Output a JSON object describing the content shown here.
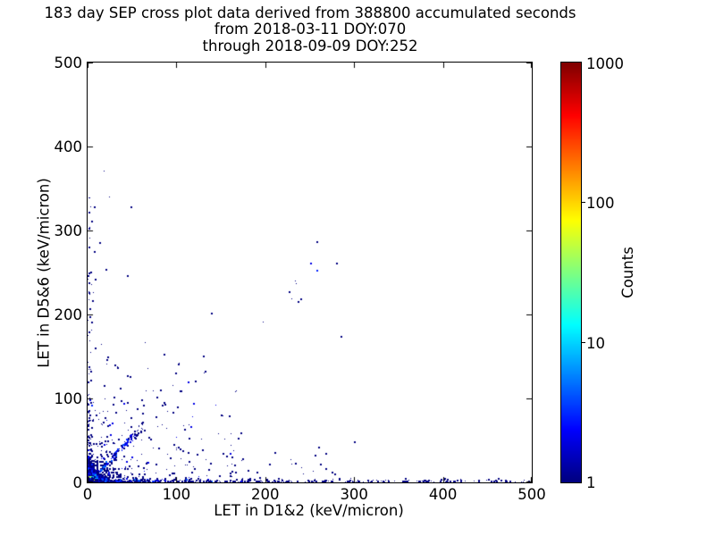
{
  "chart_data": {
    "type": "heatmap",
    "title_lines": [
      "183 day SEP cross plot data derived from 388800 accumulated seconds",
      "from 2018-03-11 DOY:070",
      "through 2018-09-09 DOY:252"
    ],
    "xlabel": "LET in D1&2 (keV/micron)",
    "ylabel": "LET in D5&6 (keV/micron)",
    "xlim": [
      0,
      500
    ],
    "ylim": [
      0,
      500
    ],
    "xticks": [
      0,
      100,
      200,
      300,
      400,
      500
    ],
    "yticks": [
      0,
      100,
      200,
      300,
      400,
      500
    ],
    "grid": false,
    "background": "#ffffff",
    "colorbar": {
      "label": "Counts",
      "scale": "log",
      "min": 1,
      "max": 1000,
      "ticks": [
        1,
        10,
        100,
        1000
      ],
      "colormap": "jet",
      "low_color": "#000080",
      "high_color": "#800000"
    },
    "points": [
      [
        18,
        371,
        1
      ],
      [
        24,
        340,
        1
      ],
      [
        7,
        328,
        1
      ],
      [
        48,
        328,
        1
      ],
      [
        13,
        285,
        1
      ],
      [
        7,
        274,
        1
      ],
      [
        20,
        253,
        1
      ],
      [
        3,
        250,
        1
      ],
      [
        44,
        246,
        1
      ],
      [
        8,
        242,
        1
      ],
      [
        6,
        227,
        1
      ],
      [
        5,
        216,
        1
      ],
      [
        2,
        206,
        1
      ],
      [
        4,
        190,
        1
      ],
      [
        8,
        160,
        1
      ],
      [
        3,
        155,
        1
      ],
      [
        226,
        227,
        1
      ],
      [
        229,
        219,
        1
      ],
      [
        236,
        215,
        1
      ],
      [
        233,
        240,
        1
      ],
      [
        234,
        237,
        1
      ],
      [
        251,
        261,
        2
      ],
      [
        280,
        261,
        1
      ],
      [
        258,
        286,
        1
      ],
      [
        258,
        252,
        3
      ],
      [
        239,
        218,
        1
      ],
      [
        285,
        173,
        1
      ],
      [
        139,
        201,
        1
      ],
      [
        197,
        192,
        1
      ],
      [
        130,
        150,
        1
      ],
      [
        103,
        143,
        1
      ],
      [
        102,
        140,
        1
      ],
      [
        33,
        136,
        1
      ],
      [
        67,
        136,
        1
      ],
      [
        21,
        141,
        1
      ],
      [
        132,
        132,
        1
      ],
      [
        131,
        131,
        1
      ],
      [
        99,
        130,
        1
      ],
      [
        44,
        127,
        1
      ],
      [
        113,
        119,
        2
      ],
      [
        121,
        120,
        1
      ],
      [
        96,
        116,
        1
      ],
      [
        105,
        108,
        1
      ],
      [
        167,
        110,
        1
      ],
      [
        65,
        110,
        1
      ],
      [
        166,
        109,
        1
      ],
      [
        104,
        109,
        1
      ],
      [
        77,
        101,
        1
      ],
      [
        62,
        91,
        1
      ],
      [
        84,
        92,
        1
      ],
      [
        60,
        98,
        1
      ],
      [
        228,
        28,
        1
      ],
      [
        233,
        22,
        1
      ],
      [
        240,
        18,
        1
      ],
      [
        254,
        14,
        1
      ],
      [
        210,
        35,
        1
      ],
      [
        190,
        12,
        1
      ]
    ],
    "generators": {
      "seed": 1337,
      "corner_blob": {
        "x_max": 36,
        "y_max": 36,
        "cell": 2,
        "peak": 1000,
        "decay": 2.6,
        "halo_peak": 6,
        "halo_decay": 12
      },
      "bottom_band": {
        "n": 430,
        "x_min": 8,
        "x_max": 500,
        "x_bias": 2.4,
        "y_spread": 5,
        "count_max": 5
      },
      "left_band": {
        "n": 100,
        "y_min": 8,
        "y_max": 340,
        "y_bias": 2.6,
        "x_spread": 5,
        "count_max": 3
      },
      "diagonal_band": {
        "n": 170,
        "x_start": 2,
        "x_end": 62,
        "slope": 1.08,
        "jitter": 4,
        "count_max": 8
      },
      "near_cloud": {
        "n": 330,
        "x_max": 175,
        "y_max": 95,
        "x_bias": 2.2,
        "y_bias": 2.4
      },
      "upper_cloud": {
        "n": 70,
        "x_max": 120,
        "y_max": 170,
        "x_bias": 2.0,
        "y_bias": 2.2
      },
      "far_sparse": {
        "n": 30,
        "x_min": 150,
        "x_max": 310,
        "y_max": 55,
        "y_bias": 2.0
      }
    }
  }
}
